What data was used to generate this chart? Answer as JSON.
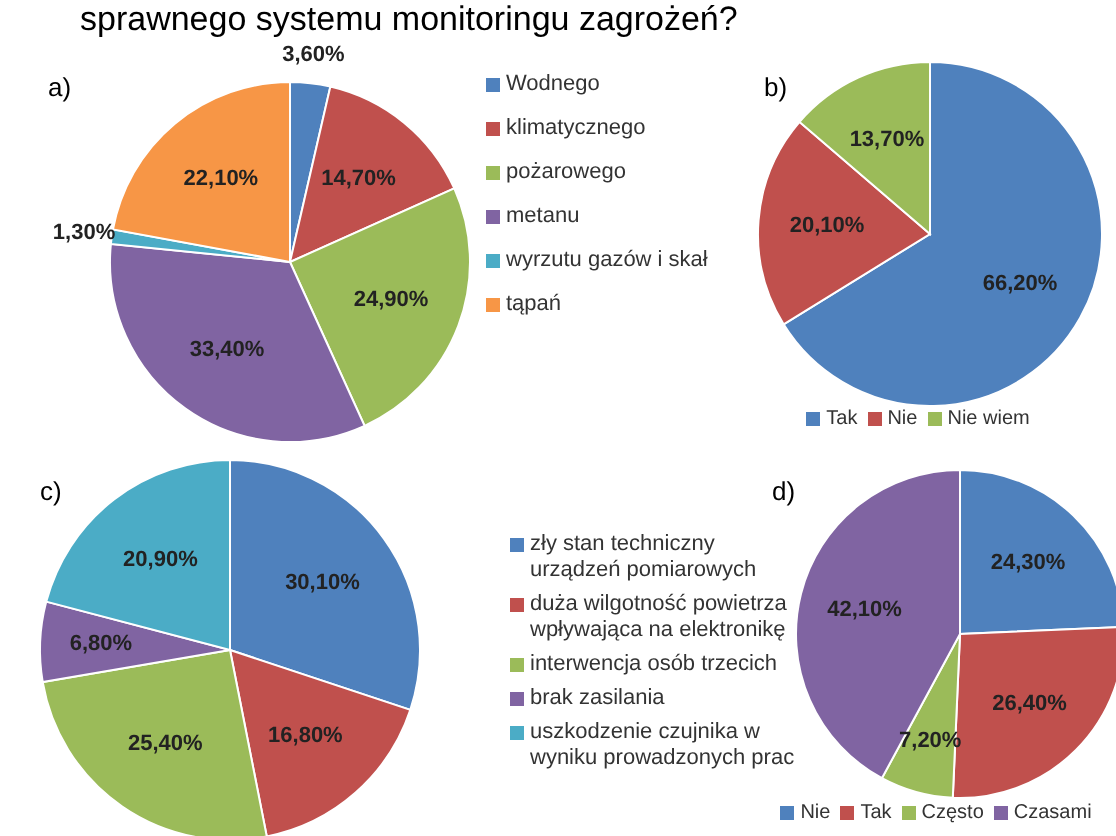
{
  "chart_data": [
    {
      "type": "pie",
      "title": "a)",
      "annotations": [
        "sprawnego systemu monitoringu zagrożeń?"
      ],
      "categories": [
        "Wodnego",
        "klimatycznego",
        "pożarowego",
        "metanu",
        "wyrzutu gazów i skał",
        "tąpań"
      ],
      "values": [
        3.6,
        14.7,
        24.9,
        33.4,
        1.3,
        22.1
      ],
      "value_labels": [
        "3,60%",
        "14,70%",
        "24,90%",
        "33,40%",
        "1,30%",
        "22,10%"
      ],
      "colors": [
        "#4f81bd",
        "#c0504d",
        "#9bbb59",
        "#8064a2",
        "#4bacc6",
        "#f79646"
      ],
      "legend": "right"
    },
    {
      "type": "pie",
      "title": "b)",
      "categories": [
        "Tak",
        "Nie",
        "Nie wiem"
      ],
      "values": [
        66.2,
        20.1,
        13.7
      ],
      "value_labels": [
        "66,20%",
        "20,10%",
        "13,70%"
      ],
      "colors": [
        "#4f81bd",
        "#c0504d",
        "#9bbb59"
      ],
      "legend": "bottom"
    },
    {
      "type": "pie",
      "title": "c)",
      "categories": [
        "zły stan techniczny urządzeń pomiarowych",
        "duża wilgotność powietrza wpływająca na elektronikę",
        "interwencja osób trzecich",
        "brak zasilania",
        "uszkodzenie czujnika w wyniku prowadzonych prac"
      ],
      "values": [
        30.1,
        16.8,
        25.4,
        6.8,
        20.9
      ],
      "value_labels": [
        "30,10%",
        "16,80%",
        "25,40%",
        "6,80%",
        "20,90%"
      ],
      "colors": [
        "#4f81bd",
        "#c0504d",
        "#9bbb59",
        "#8064a2",
        "#4bacc6"
      ],
      "legend": "right"
    },
    {
      "type": "pie",
      "title": "d)",
      "categories": [
        "Nie",
        "Tak",
        "Często",
        "Czasami"
      ],
      "values": [
        24.3,
        26.4,
        7.2,
        42.1
      ],
      "value_labels": [
        "24,30%",
        "26,40%",
        "7,20%",
        "42,10%"
      ],
      "colors": [
        "#4f81bd",
        "#c0504d",
        "#9bbb59",
        "#8064a2"
      ],
      "legend": "bottom"
    }
  ]
}
